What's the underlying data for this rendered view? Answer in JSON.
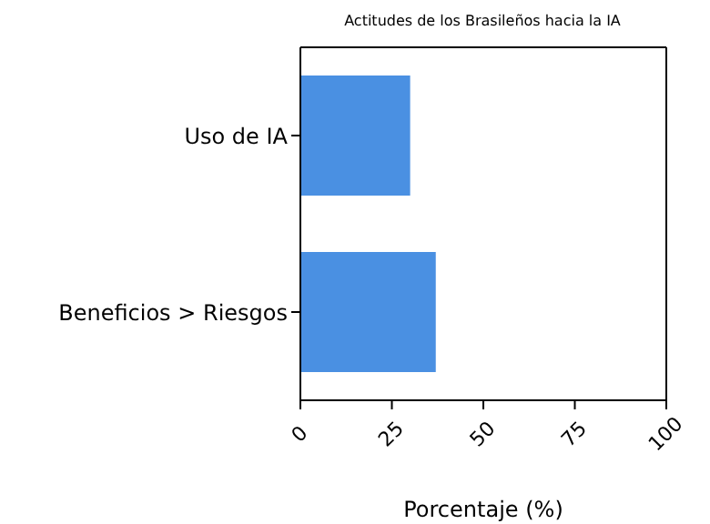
{
  "chart_data": {
    "type": "bar",
    "orientation": "horizontal",
    "title": "Actitudes de los Brasileños hacia la IA",
    "xlabel": "Porcentaje (%)",
    "categories": [
      "Uso de IA",
      "Beneficios > Riesgos"
    ],
    "values": [
      30,
      37
    ],
    "color": "#4a90e2",
    "xlim": [
      0,
      100
    ],
    "xticks": [
      0,
      25,
      50,
      75,
      100
    ]
  }
}
